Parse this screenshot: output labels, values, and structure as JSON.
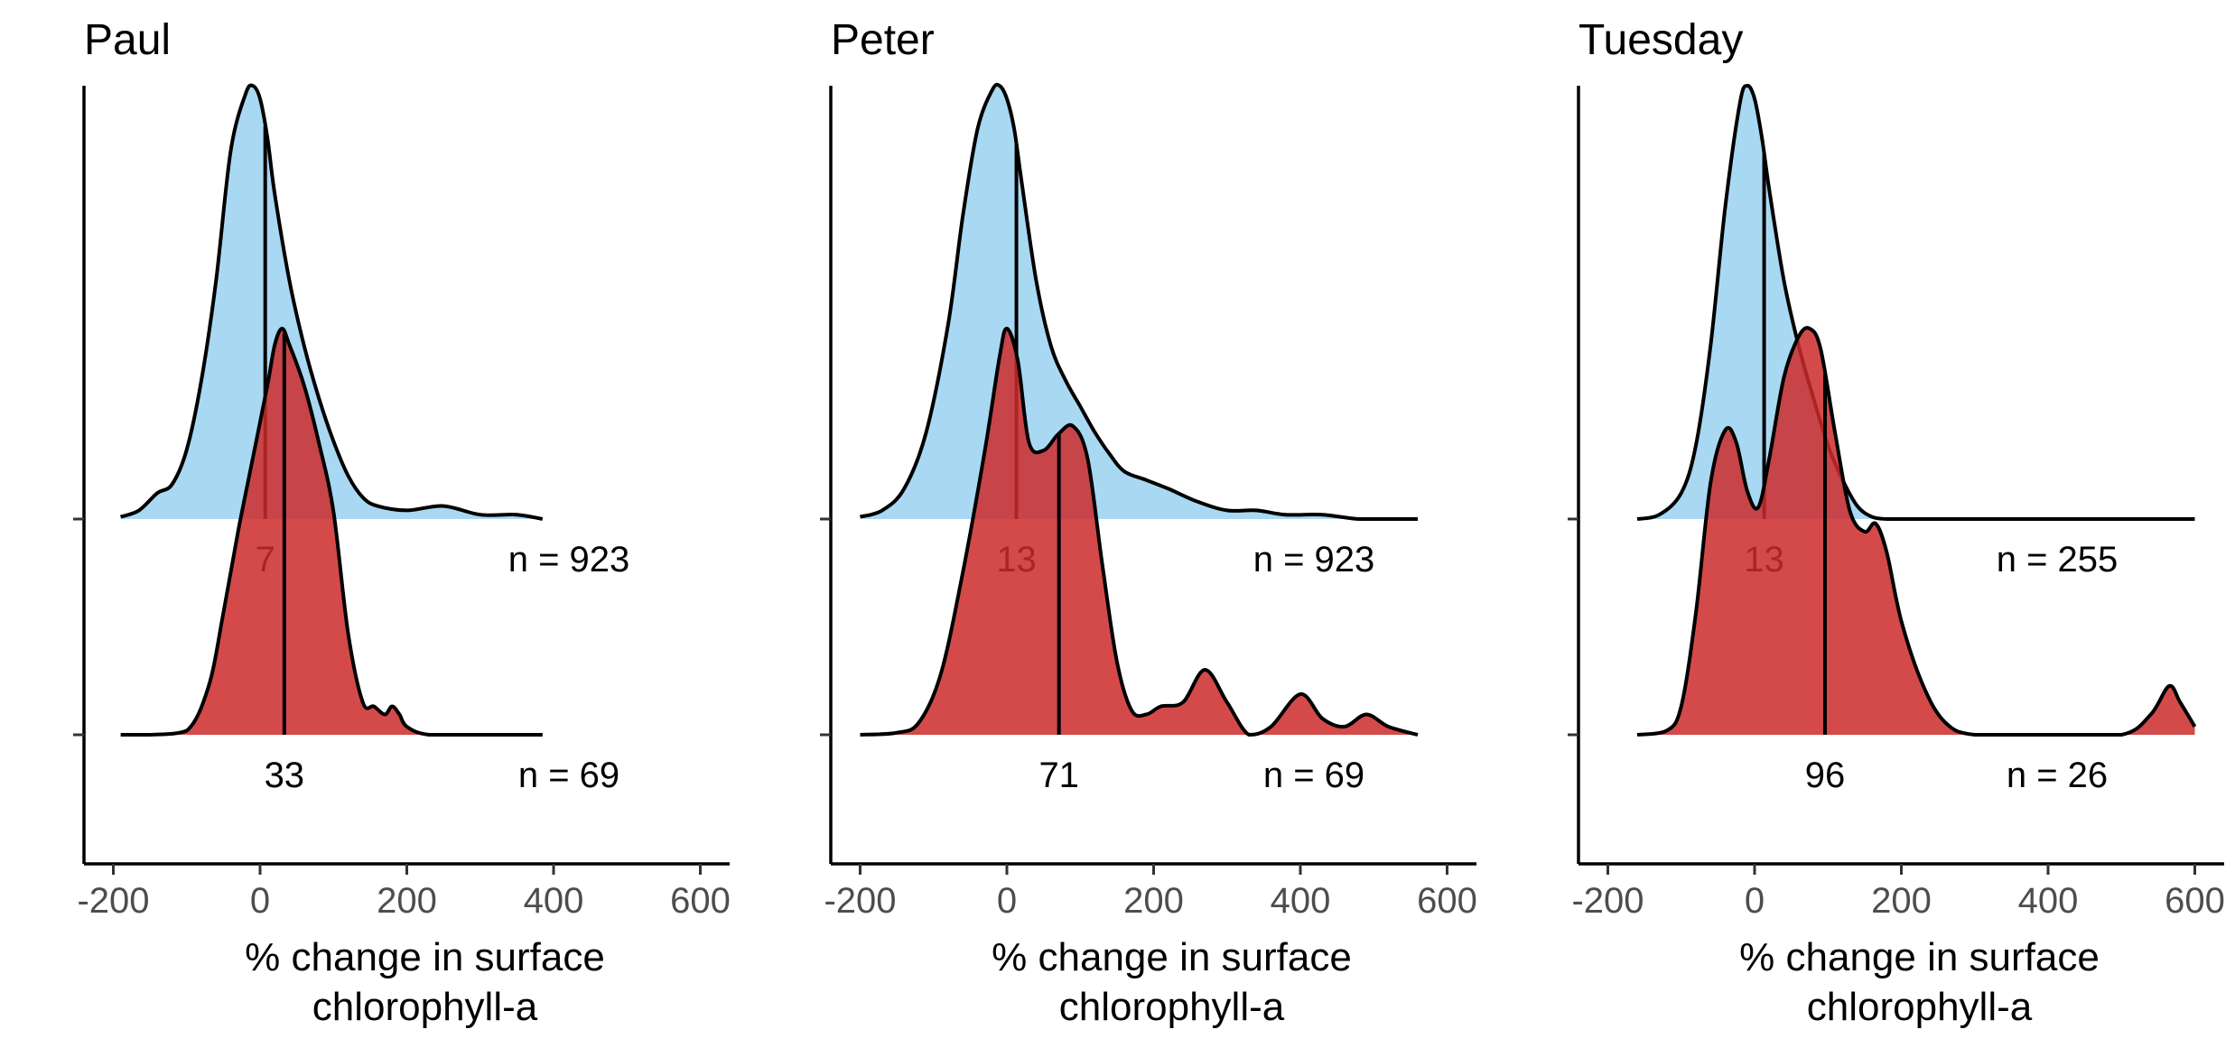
{
  "colors": {
    "pre_fill": "#a9d8f2",
    "post_fill": "#cc2a2a",
    "line": "#000000",
    "tick_text": "#4d4d4d"
  },
  "chart_data": [
    {
      "type": "ridgeline-density",
      "title": "Paul",
      "xlabel": "% change in surface chlorophyll-a",
      "xlabel_lines": [
        "% change in surface",
        "chlorophyll-a"
      ],
      "xticks": [
        -200,
        0,
        200,
        400,
        600
      ],
      "tick_labels": [
        "-200",
        "0",
        "200",
        "400",
        "600"
      ],
      "xlim": [
        -240,
        640
      ],
      "grid": false,
      "rows": [
        {
          "median": 7,
          "median_label": "7",
          "n_label": "n = 923",
          "x": [
            -190,
            -165,
            -140,
            -120,
            -100,
            -80,
            -60,
            -40,
            -20,
            -10,
            0,
            10,
            20,
            40,
            60,
            80,
            100,
            120,
            140,
            160,
            200,
            250,
            300,
            350,
            385
          ],
          "y": [
            0.005,
            0.02,
            0.06,
            0.08,
            0.16,
            0.32,
            0.55,
            0.85,
            0.98,
            1.0,
            0.97,
            0.88,
            0.75,
            0.55,
            0.4,
            0.28,
            0.18,
            0.1,
            0.05,
            0.03,
            0.02,
            0.03,
            0.01,
            0.01,
            0.0
          ],
          "fill": "pre"
        },
        {
          "median": 33,
          "median_label": "33",
          "n_label": "n = 69",
          "x": [
            -190,
            -150,
            -100,
            -70,
            -50,
            -30,
            -10,
            10,
            20,
            30,
            40,
            60,
            80,
            100,
            120,
            140,
            155,
            170,
            180,
            190,
            200,
            230,
            300,
            385
          ],
          "y": [
            0,
            0,
            0.01,
            0.12,
            0.3,
            0.5,
            0.68,
            0.86,
            0.96,
            1.0,
            0.96,
            0.86,
            0.72,
            0.55,
            0.25,
            0.08,
            0.07,
            0.05,
            0.07,
            0.05,
            0.02,
            0.0,
            0.0,
            0.0
          ],
          "fill": "post"
        }
      ]
    },
    {
      "type": "ridgeline-density",
      "title": "Peter",
      "xlabel": "% change in surface chlorophyll-a",
      "xlabel_lines": [
        "% change in surface",
        "chlorophyll-a"
      ],
      "xticks": [
        -200,
        0,
        200,
        400,
        600
      ],
      "tick_labels": [
        "-200",
        "0",
        "200",
        "400",
        "600"
      ],
      "xlim": [
        -240,
        640
      ],
      "grid": false,
      "rows": [
        {
          "median": 13,
          "median_label": "13",
          "n_label": "n = 923",
          "x": [
            -200,
            -170,
            -140,
            -110,
            -80,
            -60,
            -40,
            -20,
            -10,
            0,
            10,
            20,
            40,
            60,
            80,
            100,
            120,
            140,
            160,
            190,
            220,
            260,
            300,
            340,
            380,
            430,
            480,
            530,
            560
          ],
          "y": [
            0.005,
            0.02,
            0.07,
            0.2,
            0.45,
            0.7,
            0.9,
            0.99,
            1.0,
            0.97,
            0.9,
            0.78,
            0.55,
            0.4,
            0.32,
            0.26,
            0.2,
            0.15,
            0.11,
            0.09,
            0.07,
            0.04,
            0.02,
            0.02,
            0.01,
            0.01,
            0.0,
            0.0,
            0.0
          ],
          "fill": "pre"
        },
        {
          "median": 71,
          "median_label": "71",
          "n_label": "n = 69",
          "x": [
            -200,
            -150,
            -120,
            -90,
            -60,
            -30,
            -10,
            0,
            15,
            30,
            50,
            70,
            90,
            110,
            130,
            150,
            170,
            190,
            210,
            240,
            270,
            300,
            330,
            360,
            400,
            430,
            460,
            490,
            520,
            560
          ],
          "y": [
            0,
            0.005,
            0.03,
            0.15,
            0.4,
            0.7,
            0.93,
            1.0,
            0.92,
            0.72,
            0.7,
            0.74,
            0.76,
            0.68,
            0.42,
            0.18,
            0.06,
            0.05,
            0.07,
            0.08,
            0.16,
            0.08,
            0.0,
            0.02,
            0.1,
            0.04,
            0.02,
            0.05,
            0.02,
            0.0
          ],
          "fill": "post"
        }
      ]
    },
    {
      "type": "ridgeline-density",
      "title": "Tuesday",
      "xlabel": "% change in surface chlorophyll-a",
      "xlabel_lines": [
        "% change in surface",
        "chlorophyll-a"
      ],
      "xticks": [
        -200,
        0,
        200,
        400,
        600
      ],
      "tick_labels": [
        "-200",
        "0",
        "200",
        "400",
        "600"
      ],
      "xlim": [
        -240,
        640
      ],
      "grid": false,
      "rows": [
        {
          "median": 13,
          "median_label": "13",
          "n_label": "n = 255",
          "x": [
            -160,
            -130,
            -100,
            -80,
            -60,
            -40,
            -20,
            -10,
            0,
            10,
            20,
            40,
            60,
            80,
            100,
            120,
            140,
            160,
            180,
            200,
            250,
            300,
            400,
            500,
            600
          ],
          "y": [
            0.0,
            0.01,
            0.06,
            0.17,
            0.4,
            0.72,
            0.96,
            1.0,
            0.97,
            0.88,
            0.76,
            0.55,
            0.4,
            0.28,
            0.17,
            0.09,
            0.03,
            0.005,
            0.0,
            0.0,
            0.0,
            0.0,
            0.0,
            0.0,
            0.0
          ],
          "fill": "pre"
        },
        {
          "median": 96,
          "median_label": "96",
          "n_label": "n = 26",
          "x": [
            -160,
            -120,
            -100,
            -80,
            -60,
            -40,
            -25,
            -10,
            5,
            20,
            40,
            60,
            75,
            90,
            110,
            130,
            150,
            165,
            180,
            200,
            230,
            260,
            300,
            400,
            500,
            540,
            565,
            580,
            600
          ],
          "y": [
            0,
            0.01,
            0.07,
            0.3,
            0.62,
            0.75,
            0.72,
            0.6,
            0.56,
            0.68,
            0.88,
            0.98,
            1.0,
            0.95,
            0.74,
            0.55,
            0.5,
            0.52,
            0.45,
            0.28,
            0.12,
            0.03,
            0.0,
            0.0,
            0.0,
            0.05,
            0.12,
            0.08,
            0.02
          ],
          "fill": "post"
        }
      ]
    }
  ]
}
